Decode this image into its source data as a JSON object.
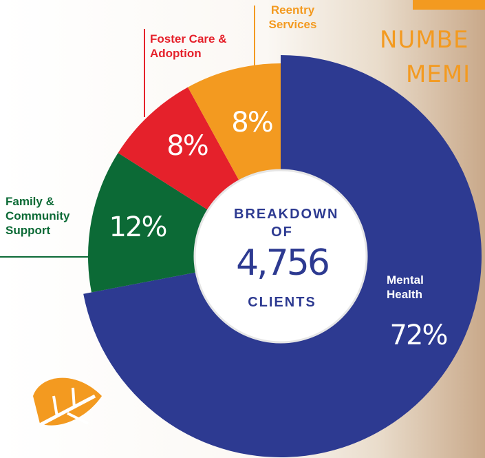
{
  "chart_data": {
    "type": "donut",
    "categories": [
      "Mental Health",
      "Family & Community Support",
      "Foster Care & Adoption",
      "Reentry Services"
    ],
    "values": [
      72,
      12,
      8,
      8
    ],
    "value_labels": [
      "72%",
      "12%",
      "8%",
      "8%"
    ],
    "colors": [
      "#2d3a91",
      "#0c6a36",
      "#e5212b",
      "#f39a20"
    ],
    "center_title": "BREAKDOWN OF",
    "center_value": "4,756",
    "center_subtitle": "CLIENTS"
  },
  "header": {
    "line1": "NUMBE",
    "line2": "MEMI"
  }
}
